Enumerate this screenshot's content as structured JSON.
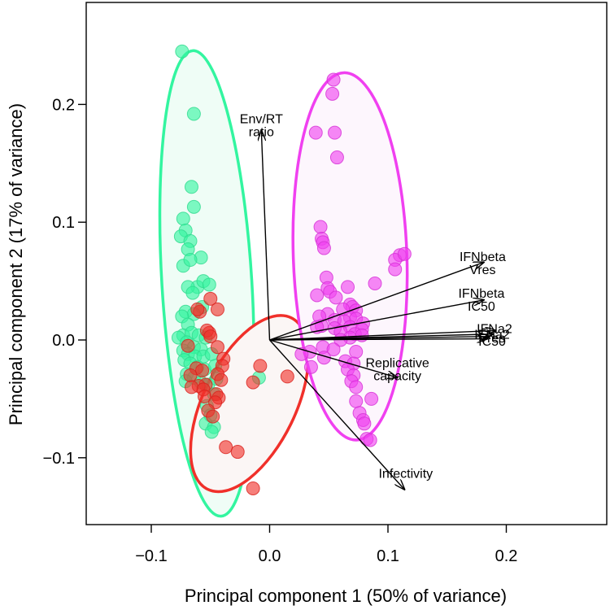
{
  "chart_data": {
    "type": "scatter",
    "title": "",
    "xlabel": "Principal component 1 (50% of variance)",
    "ylabel": "Principal component 2 (17% of variance)",
    "xlim": [
      -0.155,
      0.285
    ],
    "ylim": [
      -0.155,
      0.285
    ],
    "xticks": [
      -0.1,
      0.0,
      0.1,
      0.2
    ],
    "yticks": [
      -0.1,
      0.0,
      0.1,
      0.2
    ],
    "xtick_labels": [
      "−0.1",
      "0.0",
      "0.1",
      "0.2"
    ],
    "ytick_labels": [
      "−0.1",
      "0.0",
      "0.1",
      "0.2"
    ],
    "grid": false,
    "legend": "none",
    "colors": {
      "green": "#33f5a0",
      "red": "#f0302a",
      "magenta": "#f040f0",
      "green_edge": "#2ed98d",
      "red_edge": "#d8201c",
      "magenta_edge": "#d52fd5"
    },
    "groups": [
      {
        "color": "green",
        "ellipse": {
          "cx": -0.053,
          "cy": 0.048,
          "rx": 0.038,
          "ry": 0.198,
          "angle_deg": -3.5,
          "fill": "#effdf6"
        },
        "points": [
          [
            -0.074,
            0.245
          ],
          [
            -0.064,
            0.192
          ],
          [
            -0.066,
            0.13
          ],
          [
            -0.064,
            0.113
          ],
          [
            -0.073,
            0.103
          ],
          [
            -0.071,
            0.093
          ],
          [
            -0.075,
            0.088
          ],
          [
            -0.067,
            0.084
          ],
          [
            -0.069,
            0.077
          ],
          [
            -0.058,
            0.07
          ],
          [
            -0.073,
            0.063
          ],
          [
            -0.067,
            0.068
          ],
          [
            -0.061,
            0.045
          ],
          [
            -0.056,
            0.05
          ],
          [
            -0.051,
            0.047
          ],
          [
            -0.069,
            0.045
          ],
          [
            -0.065,
            0.04
          ],
          [
            -0.057,
            0.028
          ],
          [
            -0.071,
            0.024
          ],
          [
            -0.064,
            0.022
          ],
          [
            -0.074,
            0.02
          ],
          [
            -0.069,
            0.013
          ],
          [
            -0.073,
            0.004
          ],
          [
            -0.066,
            0.006
          ],
          [
            -0.06,
            0.004
          ],
          [
            -0.054,
            0.002
          ],
          [
            -0.077,
            0.002
          ],
          [
            -0.07,
            -0.002
          ],
          [
            -0.064,
            -0.006
          ],
          [
            -0.058,
            -0.008
          ],
          [
            -0.073,
            -0.009
          ],
          [
            -0.069,
            -0.012
          ],
          [
            -0.063,
            -0.014
          ],
          [
            -0.056,
            -0.014
          ],
          [
            -0.049,
            -0.012
          ],
          [
            -0.072,
            -0.017
          ],
          [
            -0.067,
            -0.02
          ],
          [
            -0.061,
            -0.023
          ],
          [
            -0.055,
            -0.025
          ],
          [
            -0.046,
            -0.022
          ],
          [
            -0.07,
            -0.029
          ],
          [
            -0.064,
            -0.032
          ],
          [
            -0.058,
            -0.036
          ],
          [
            -0.052,
            -0.038
          ],
          [
            -0.071,
            -0.035
          ],
          [
            -0.047,
            -0.046
          ],
          [
            -0.053,
            -0.056
          ],
          [
            -0.05,
            -0.064
          ],
          [
            -0.054,
            -0.071
          ],
          [
            -0.047,
            -0.074
          ],
          [
            -0.049,
            -0.078
          ],
          [
            -0.009,
            -0.032
          ],
          [
            -0.045,
            -0.033
          ]
        ]
      },
      {
        "color": "red",
        "ellipse": {
          "cx": -0.017,
          "cy": -0.054,
          "rx": 0.039,
          "ry": 0.081,
          "angle_deg": 26,
          "fill": "#fbf6f5"
        },
        "points": [
          [
            -0.05,
            0.035
          ],
          [
            -0.044,
            0.026
          ],
          [
            -0.059,
            0.024
          ],
          [
            -0.061,
            0.026
          ],
          [
            -0.051,
            0.006
          ],
          [
            -0.053,
            0.008
          ],
          [
            -0.05,
            0.003
          ],
          [
            -0.044,
            -0.006
          ],
          [
            -0.069,
            -0.005
          ],
          [
            -0.039,
            -0.016
          ],
          [
            -0.04,
            -0.022
          ],
          [
            -0.008,
            -0.022
          ],
          [
            -0.062,
            -0.024
          ],
          [
            -0.057,
            -0.026
          ],
          [
            -0.044,
            -0.029
          ],
          [
            -0.067,
            -0.03
          ],
          [
            -0.041,
            -0.034
          ],
          [
            -0.014,
            -0.036
          ],
          [
            -0.054,
            -0.038
          ],
          [
            -0.06,
            -0.039
          ],
          [
            -0.056,
            -0.042
          ],
          [
            -0.045,
            -0.046
          ],
          [
            -0.043,
            -0.049
          ],
          [
            -0.055,
            -0.048
          ],
          [
            -0.046,
            -0.053
          ],
          [
            -0.052,
            -0.06
          ],
          [
            -0.048,
            -0.065
          ],
          [
            -0.037,
            -0.091
          ],
          [
            -0.027,
            -0.095
          ],
          [
            -0.014,
            -0.126
          ],
          [
            0.015,
            -0.031
          ],
          [
            -0.066,
            -0.04
          ]
        ]
      },
      {
        "color": "magenta",
        "ellipse": {
          "cx": 0.068,
          "cy": 0.071,
          "rx": 0.048,
          "ry": 0.156,
          "angle_deg": -2,
          "fill": "#fdf6fd"
        },
        "points": [
          [
            0.054,
            0.221
          ],
          [
            0.053,
            0.209
          ],
          [
            0.039,
            0.176
          ],
          [
            0.055,
            0.176
          ],
          [
            0.057,
            0.155
          ],
          [
            0.043,
            0.096
          ],
          [
            0.044,
            0.086
          ],
          [
            0.045,
            0.083
          ],
          [
            0.046,
            0.078
          ],
          [
            0.11,
            0.072
          ],
          [
            0.106,
            0.068
          ],
          [
            0.114,
            0.073
          ],
          [
            0.106,
            0.06
          ],
          [
            0.089,
            0.048
          ],
          [
            0.048,
            0.053
          ],
          [
            0.049,
            0.044
          ],
          [
            0.051,
            0.041
          ],
          [
            0.066,
            0.045
          ],
          [
            0.056,
            0.036
          ],
          [
            0.04,
            0.038
          ],
          [
            0.068,
            0.03
          ],
          [
            0.07,
            0.028
          ],
          [
            0.062,
            0.026
          ],
          [
            0.073,
            0.025
          ],
          [
            0.049,
            0.022
          ],
          [
            0.042,
            0.02
          ],
          [
            0.068,
            0.019
          ],
          [
            0.073,
            0.018
          ],
          [
            0.055,
            0.017
          ],
          [
            0.063,
            0.016
          ],
          [
            0.079,
            0.014
          ],
          [
            0.044,
            0.012
          ],
          [
            0.068,
            0.011
          ],
          [
            0.078,
            0.009
          ],
          [
            0.04,
            0.011
          ],
          [
            0.055,
            0.01
          ],
          [
            0.06,
            0.007
          ],
          [
            0.072,
            0.005
          ],
          [
            0.078,
            0.004
          ],
          [
            0.068,
            0.002
          ],
          [
            0.06,
            0.0
          ],
          [
            0.045,
            -0.006
          ],
          [
            0.054,
            -0.008
          ],
          [
            0.073,
            -0.01
          ],
          [
            0.034,
            -0.01
          ],
          [
            0.027,
            -0.012
          ],
          [
            0.046,
            -0.015
          ],
          [
            0.064,
            -0.018
          ],
          [
            0.071,
            -0.02
          ],
          [
            0.035,
            -0.023
          ],
          [
            0.066,
            -0.025
          ],
          [
            0.071,
            -0.03
          ],
          [
            0.069,
            -0.035
          ],
          [
            0.073,
            -0.04
          ],
          [
            0.086,
            -0.05
          ],
          [
            0.073,
            -0.052
          ],
          [
            0.076,
            -0.062
          ],
          [
            0.079,
            -0.068
          ],
          [
            0.08,
            -0.071
          ],
          [
            0.082,
            -0.084
          ],
          [
            0.085,
            -0.085
          ]
        ]
      }
    ],
    "arrows": [
      {
        "x": -0.007,
        "y": 0.178,
        "label": [
          "Env/RT",
          "ratio"
        ],
        "label_x": -0.007,
        "label_y": 0.184
      },
      {
        "x": 0.181,
        "y": 0.066,
        "label": [
          "IFNbeta",
          "Vres"
        ],
        "label_x": 0.18,
        "label_y": 0.067
      },
      {
        "x": 0.181,
        "y": 0.034,
        "label": [
          "IFNbeta",
          "IC50"
        ],
        "label_x": 0.179,
        "label_y": 0.036
      },
      {
        "x": 0.191,
        "y": 0.008,
        "label": [
          "IFNa2"
        ],
        "label_x": 0.19,
        "label_y": 0.006
      },
      {
        "x": 0.189,
        "y": 0.005,
        "label": [
          "IFNa2"
        ],
        "label_x": 0.188,
        "label_y": 0.001
      },
      {
        "x": 0.186,
        "y": 0.003,
        "label": [
          "Vres"
        ],
        "label_x": 0.188,
        "label_y": -0.002
      },
      {
        "x": 0.184,
        "y": 0.001,
        "label": [
          "IC50"
        ],
        "label_x": 0.188,
        "label_y": -0.005
      },
      {
        "x": 0.108,
        "y": -0.032,
        "label": [
          "Replicative",
          "capacity"
        ],
        "label_x": 0.108,
        "label_y": -0.023
      },
      {
        "x": 0.114,
        "y": -0.127,
        "label": [
          "Infectivity"
        ],
        "label_x": 0.115,
        "label_y": -0.117
      }
    ]
  }
}
